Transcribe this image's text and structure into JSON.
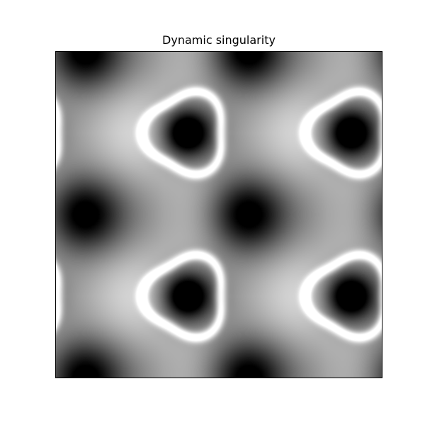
{
  "chart_data": {
    "type": "heatmap",
    "title": "Dynamic singularity",
    "colormap": "gray",
    "axis_ticks": "hidden",
    "grid": false,
    "legend": "none",
    "frame_color": "#000000",
    "background": "#ffffff"
  }
}
